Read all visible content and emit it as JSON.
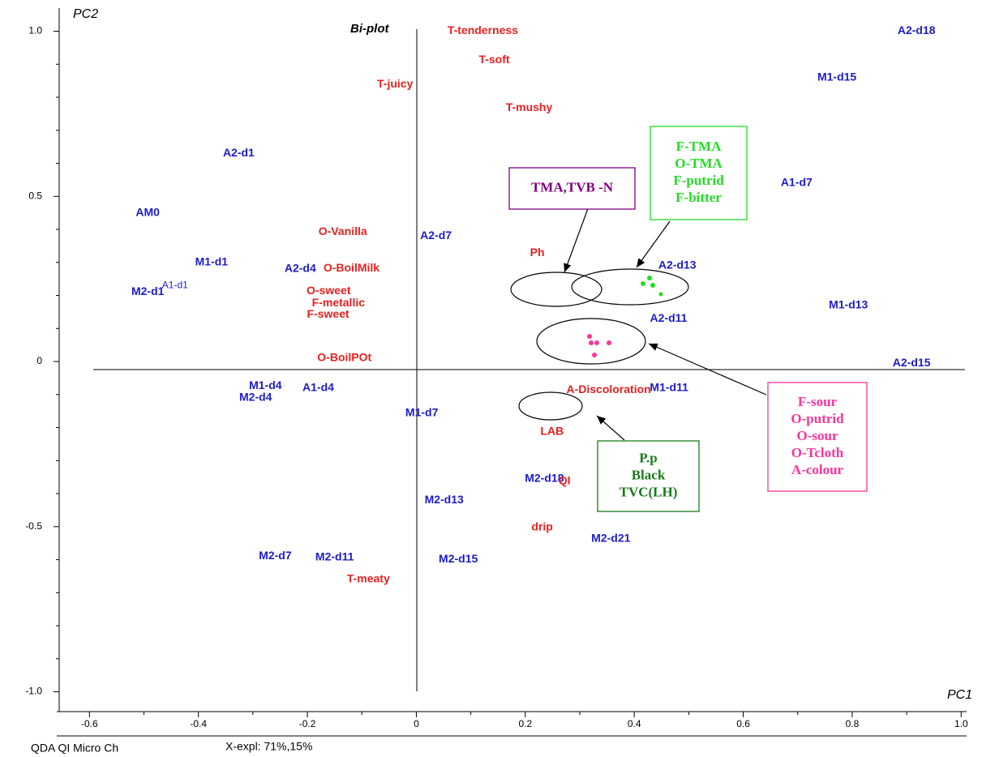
{
  "chart_data": {
    "type": "scatter",
    "title": "Bi-plot",
    "x_label": "PC1",
    "y_label": "PC2",
    "footer": [
      "QDA QI  Micro Ch",
      "X-expl: 71%,15%"
    ],
    "xlim": [
      -0.66,
      1.01
    ],
    "ylim": [
      -1.06,
      1.07
    ],
    "xticks": [
      -0.6,
      -0.4,
      -0.2,
      0,
      0.2,
      0.4,
      0.6,
      0.8,
      {
        "value": 1,
        "label": "1.0"
      }
    ],
    "yticks": [
      {
        "value": -1,
        "label": "-1.0"
      },
      -0.5,
      0,
      0.5,
      {
        "value": 1,
        "label": "1.0"
      }
    ],
    "x_minor_ticks": [
      -0.5,
      -0.3,
      -0.1,
      0.1,
      0.3,
      0.5,
      0.7,
      0.9
    ],
    "y_minor_ticks": [
      -0.9,
      -0.8,
      -0.7,
      -0.6,
      -0.4,
      -0.3,
      -0.2,
      -0.1,
      0.1,
      0.2,
      0.3,
      0.4,
      0.6,
      0.7,
      0.8,
      0.9
    ],
    "series": [
      {
        "color": "#1c1ccc",
        "bold": true,
        "labels": [
          "A2-d18",
          "M1-d15",
          "A2-d1",
          "A1-d7",
          "AM0",
          "A2-d7",
          "M1-d1",
          "A2-d4",
          "A2-d13",
          "M2-d1",
          "M1-d13",
          "A2-d11",
          "A2-d15",
          "M1-d4",
          "M2-d4",
          "A1-d4",
          "M1-d11",
          "M1-d7",
          "M2-d18",
          "M2-d13",
          "M2-d21",
          "M2-d7",
          "M2-d11",
          "M2-d15"
        ],
        "x": [
          0.918,
          0.772,
          -0.326,
          0.698,
          -0.493,
          0.036,
          -0.376,
          -0.213,
          0.479,
          -0.493,
          0.793,
          0.463,
          0.909,
          -0.277,
          -0.295,
          -0.18,
          0.464,
          0.01,
          0.235,
          0.051,
          0.357,
          -0.259,
          -0.15,
          0.077
        ],
        "values": [
          1.0,
          0.86,
          0.63,
          0.54,
          0.45,
          0.38,
          0.3,
          0.28,
          0.29,
          0.21,
          0.17,
          0.13,
          -0.005,
          -0.074,
          -0.11,
          -0.081,
          -0.081,
          -0.157,
          -0.355,
          -0.42,
          -0.537,
          -0.59,
          -0.593,
          -0.6
        ]
      },
      {
        "color": "#1c1ccc",
        "bold": false,
        "labels": [
          "A1-d1"
        ],
        "x": [
          -0.443
        ],
        "values": [
          0.23
        ]
      },
      {
        "color": "#e8201f",
        "bold": true,
        "labels": [
          "T-tenderness",
          "T-soft",
          "T-juicy",
          "T-mushy",
          "O-Vanilla",
          "Ph",
          "O-BoilMilk",
          "O-sweet",
          "F-metallic",
          "F-sweet",
          "O-BoilPOt",
          "A-Discoloration",
          "LAB",
          "QI",
          "drip",
          "T-meaty"
        ],
        "x": [
          0.122,
          0.143,
          -0.039,
          0.207,
          -0.135,
          0.222,
          -0.119,
          -0.161,
          -0.143,
          -0.162,
          -0.132,
          0.353,
          0.249,
          0.272,
          0.231,
          -0.088
        ],
        "values": [
          1.0,
          0.912,
          0.838,
          0.767,
          0.392,
          0.328,
          0.282,
          0.213,
          0.176,
          0.142,
          0.01,
          -0.086,
          -0.213,
          -0.363,
          -0.502,
          -0.659
        ]
      }
    ],
    "annotations": [
      {
        "color": "#800080",
        "lines": [
          "TMA,TVB -N"
        ]
      },
      {
        "color": "#22dd22",
        "lines": [
          "F-TMA",
          "O-TMA",
          "F-putrid",
          "F-bitter"
        ]
      },
      {
        "color": "#ff3399",
        "lines": [
          "F-sour",
          "O-putrid",
          "O-sour",
          "O-Tcloth",
          "A-colour"
        ]
      },
      {
        "color": "#1a7a1a",
        "lines": [
          "P.p",
          "Black",
          "TVC(LH)"
        ]
      }
    ]
  }
}
